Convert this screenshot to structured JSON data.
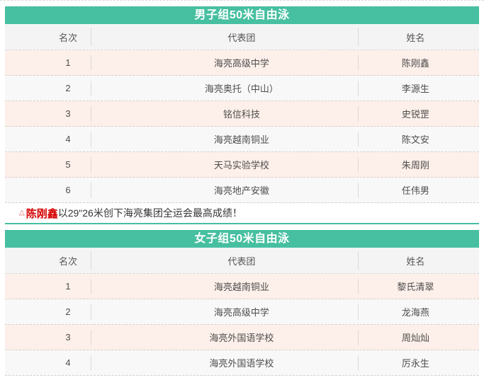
{
  "colors": {
    "accent_green": "#47bfa1",
    "row_pink": "#fdefe9",
    "row_light": "#f8f8f8",
    "header_gray": "#f4f4f4",
    "highlight_red": "#d40000"
  },
  "columns": [
    "名次",
    "代表团",
    "姓名"
  ],
  "tables": [
    {
      "title": "男子组50米自由泳",
      "rows": [
        {
          "rank": "1",
          "team": "海亮高级中学",
          "name": "陈刚鑫"
        },
        {
          "rank": "2",
          "team": "海亮奥托（中山）",
          "name": "李源生"
        },
        {
          "rank": "3",
          "team": "铭信科技",
          "name": "史锐罡"
        },
        {
          "rank": "4",
          "team": "海亮越南铜业",
          "name": "陈文安"
        },
        {
          "rank": "5",
          "team": "天马实验学校",
          "name": "朱周刚"
        },
        {
          "rank": "6",
          "team": "海亮地产安徽",
          "name": "任伟男"
        }
      ]
    },
    {
      "title": "女子组50米自由泳",
      "rows": [
        {
          "rank": "1",
          "team": "海亮越南铜业",
          "name": "黎氏清翠"
        },
        {
          "rank": "2",
          "team": "海亮高级中学",
          "name": "龙海燕"
        },
        {
          "rank": "3",
          "team": "海亮外国语学校",
          "name": "周灿灿"
        },
        {
          "rank": "4",
          "team": "海亮外国语学校",
          "name": "厉永生"
        }
      ]
    }
  ],
  "note": {
    "marker": "△",
    "highlight": "陈刚鑫",
    "text": "以29\"26米创下海亮集团全运会最高成绩！"
  }
}
